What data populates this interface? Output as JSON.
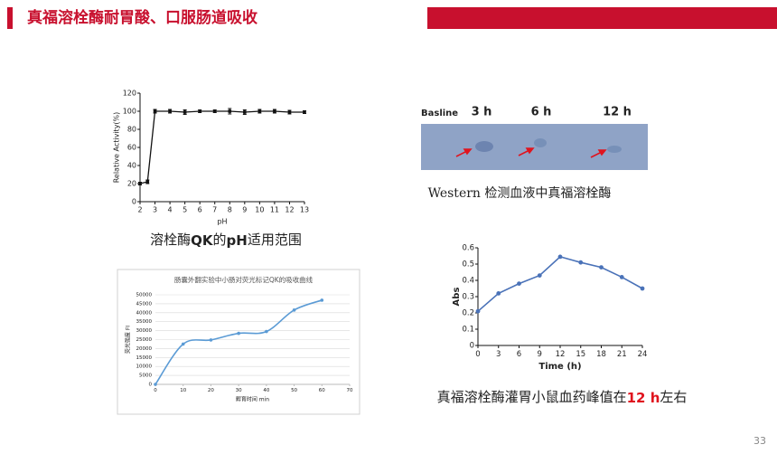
{
  "slide": {
    "title": "真福溶栓酶耐胃酸、口服肠道吸收",
    "page_number": "33",
    "captions": [
      [
        "溶栓酶",
        "QK",
        "的",
        "pH",
        "适用范围"
      ],
      [
        "Western 检测血液中真福溶栓酶"
      ],
      [
        "真福溶栓酶灌胃小鼠血药峰值在",
        "12 h",
        "左右"
      ]
    ],
    "blot_labels": [
      "Basline",
      "3 h",
      "6 h",
      "12 h"
    ]
  },
  "chart_data": [
    {
      "type": "line",
      "x_label": "pH",
      "y_label": "Relative Activity(%)",
      "color": "#111111",
      "x": [
        2,
        2.5,
        3,
        4,
        5,
        6,
        7,
        8,
        9,
        10,
        11,
        12,
        13
      ],
      "values": [
        20,
        22,
        100,
        100,
        99,
        100,
        100,
        100,
        99,
        100,
        100,
        99,
        99
      ],
      "errors": [
        1.5,
        2,
        2,
        2,
        2.5,
        1.5,
        1.5,
        3,
        2.5,
        2,
        2,
        2,
        1.5
      ],
      "xlim": [
        2,
        13
      ],
      "xticks": [
        2,
        3,
        4,
        5,
        6,
        7,
        8,
        9,
        10,
        11,
        12,
        13
      ],
      "ylim": [
        0,
        120
      ],
      "yticks": [
        0,
        20,
        40,
        60,
        80,
        100,
        120
      ],
      "grid": false
    },
    {
      "type": "line",
      "title": "肠囊外翻实验中小肠对荧光标记QK的吸收曲线",
      "x_label": "孵育时间 min",
      "y_label": "荧光强度 FI",
      "color": "#5b9bd5",
      "smooth": true,
      "x": [
        0,
        10,
        20,
        30,
        40,
        50,
        60
      ],
      "values": [
        0,
        22500,
        24800,
        28500,
        29500,
        41500,
        47000
      ],
      "xlim": [
        0,
        70
      ],
      "xticks": [
        0,
        10,
        20,
        30,
        40,
        50,
        60,
        70
      ],
      "ylim": [
        0,
        50000
      ],
      "yticks": [
        0,
        5000,
        10000,
        15000,
        20000,
        25000,
        30000,
        35000,
        40000,
        45000,
        50000
      ],
      "grid": true
    },
    {
      "type": "line",
      "x_label": "Time (h)",
      "y_label": "Abs",
      "color": "#4a72b8",
      "x": [
        0,
        3,
        6,
        9,
        12,
        15,
        18,
        21,
        24
      ],
      "values": [
        0.21,
        0.32,
        0.38,
        0.43,
        0.545,
        0.51,
        0.48,
        0.42,
        0.35
      ],
      "xlim": [
        0,
        24
      ],
      "xticks": [
        0,
        3,
        6,
        9,
        12,
        15,
        18,
        21,
        24
      ],
      "ylim": [
        0,
        0.6
      ],
      "yticks": [
        0,
        0.1,
        0.2,
        0.3,
        0.4,
        0.5,
        0.6
      ],
      "grid": false
    }
  ]
}
